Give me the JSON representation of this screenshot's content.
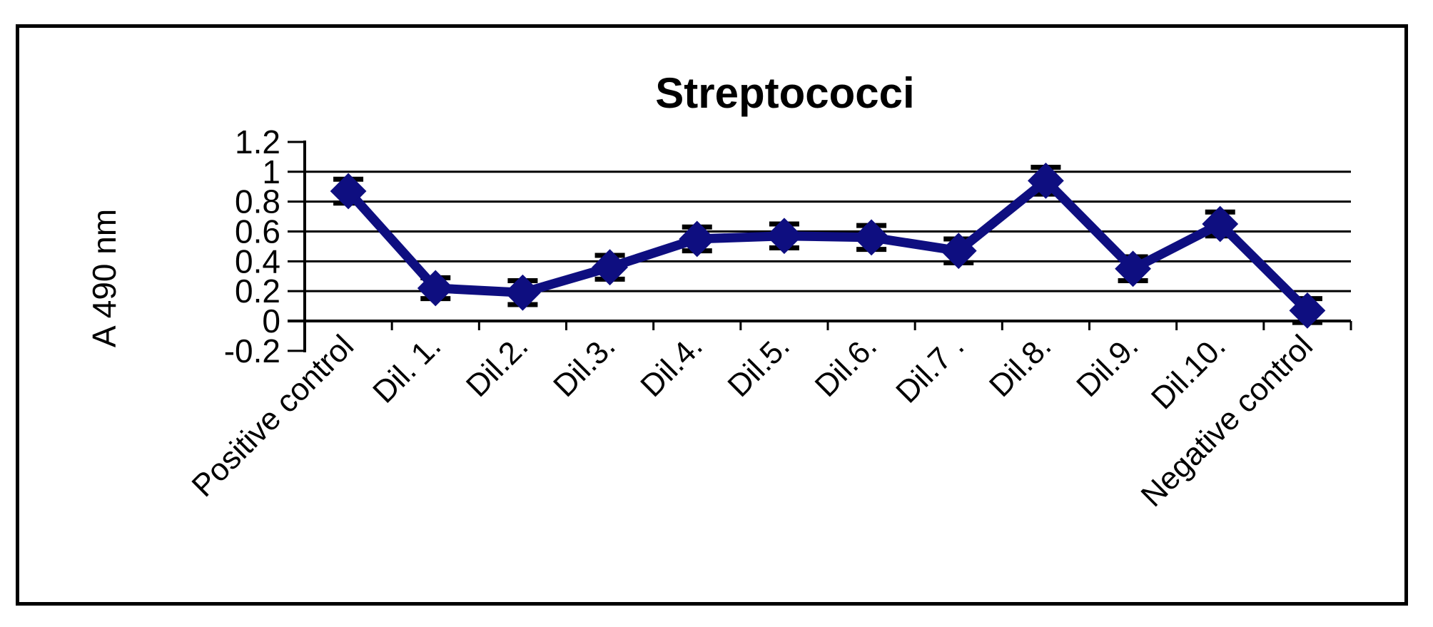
{
  "chart_data": {
    "type": "line",
    "title": "Streptococci",
    "ylabel": "A 490 nm",
    "xlabel": "",
    "categories": [
      "Positive control",
      "Dil. 1.",
      "Dil.2.",
      "Dil.3.",
      "Dil.4.",
      "Dil.5.",
      "Dil.6.",
      "Dil.7 .",
      "Dil.8.",
      "Dil.9.",
      "Dil.10.",
      "Negative control"
    ],
    "values": [
      0.87,
      0.22,
      0.19,
      0.36,
      0.55,
      0.57,
      0.56,
      0.47,
      0.94,
      0.35,
      0.65,
      0.07
    ],
    "errors_plus_minus": [
      0.08,
      0.07,
      0.08,
      0.08,
      0.08,
      0.08,
      0.08,
      0.08,
      0.09,
      0.08,
      0.08,
      0.08
    ],
    "ylim": [
      -0.2,
      1.2
    ],
    "ytick_step": 0.2,
    "ytick_labels": [
      "1.2",
      "1",
      "0.8",
      "0.6",
      "0.4",
      "0.2",
      "0",
      "-0.2"
    ],
    "grid": "horizontal",
    "legend": "none",
    "marker": "diamond",
    "series_color": "#0e0e80",
    "axis_color": "#000000",
    "error_bar_color": "#000000",
    "frame_border_color": "#000000",
    "background_color": "#ffffff"
  }
}
